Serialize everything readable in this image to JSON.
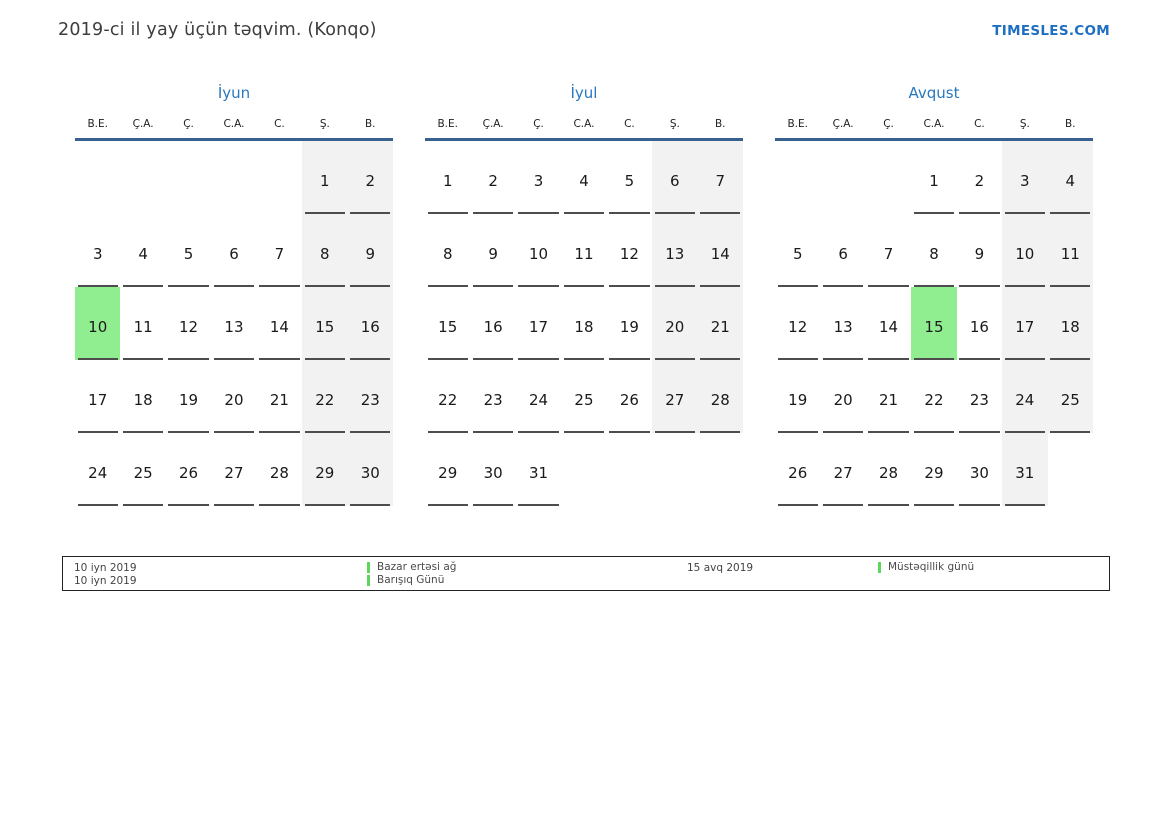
{
  "page": {
    "title": "2019-ci il yay üçün təqvim. (Konqo)",
    "site_link": "TIMESLES.COM"
  },
  "colors": {
    "accent_blue": "#2878be",
    "link_blue": "#1e6ec2",
    "header_rule_blue": "#38618f",
    "weekend_bg": "#f2f2f2",
    "highlight_green": "#90ee90",
    "legend_marker_green": "#5cd65c",
    "cell_rule_gray": "#4d4d4d"
  },
  "weekday_headers": [
    "B.E.",
    "Ç.A.",
    "Ç.",
    "C.A.",
    "C.",
    "Ş.",
    "B."
  ],
  "months": [
    {
      "name": "İyun",
      "highlight": "10",
      "weeks": [
        [
          "",
          "",
          "",
          "",
          "",
          "1",
          "2"
        ],
        [
          "3",
          "4",
          "5",
          "6",
          "7",
          "8",
          "9"
        ],
        [
          "10",
          "11",
          "12",
          "13",
          "14",
          "15",
          "16"
        ],
        [
          "17",
          "18",
          "19",
          "20",
          "21",
          "22",
          "23"
        ],
        [
          "24",
          "25",
          "26",
          "27",
          "28",
          "29",
          "30"
        ]
      ]
    },
    {
      "name": "İyul",
      "highlight": "",
      "weeks": [
        [
          "1",
          "2",
          "3",
          "4",
          "5",
          "6",
          "7"
        ],
        [
          "8",
          "9",
          "10",
          "11",
          "12",
          "13",
          "14"
        ],
        [
          "15",
          "16",
          "17",
          "18",
          "19",
          "20",
          "21"
        ],
        [
          "22",
          "23",
          "24",
          "25",
          "26",
          "27",
          "28"
        ],
        [
          "29",
          "30",
          "31",
          "",
          "",
          "",
          ""
        ]
      ]
    },
    {
      "name": "Avqust",
      "highlight": "15",
      "weeks": [
        [
          "",
          "",
          "",
          "1",
          "2",
          "3",
          "4"
        ],
        [
          "5",
          "6",
          "7",
          "8",
          "9",
          "10",
          "11"
        ],
        [
          "12",
          "13",
          "14",
          "15",
          "16",
          "17",
          "18"
        ],
        [
          "19",
          "20",
          "21",
          "22",
          "23",
          "24",
          "25"
        ],
        [
          "26",
          "27",
          "28",
          "29",
          "30",
          "31",
          ""
        ]
      ]
    }
  ],
  "legend": {
    "entries": [
      {
        "date": "10 iyn 2019",
        "label": "Bazar ertəsi ağ"
      },
      {
        "date": "10 iyn 2019",
        "label": "Barışıq Günü"
      },
      {
        "date": "15 avq 2019",
        "label": "Müstəqillik günü"
      }
    ]
  }
}
